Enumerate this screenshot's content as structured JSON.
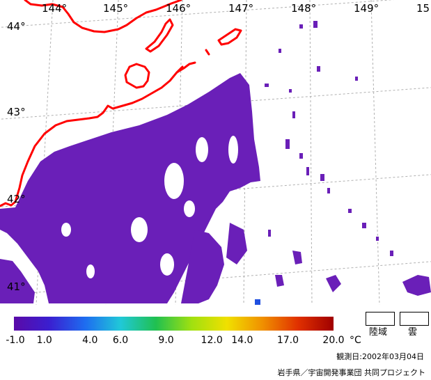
{
  "map": {
    "lon_labels": [
      "144°",
      "145°",
      "146°",
      "147°",
      "148°",
      "149°",
      "15"
    ],
    "lat_labels": [
      "44°",
      "43°",
      "42°",
      "41°"
    ],
    "coastline_color": "#ff0000",
    "sst_color": "#6a1fb8",
    "grid_color": "#b0b0b0"
  },
  "legend": {
    "ticks": [
      "-1.0",
      "1.0",
      "4.0",
      "6.0",
      "9.0",
      "12.0",
      "14.0",
      "17.0",
      "20.0"
    ],
    "unit": "°C",
    "land_label": "陸域",
    "cloud_label": "雲",
    "colors": [
      "#5a0aa8",
      "#3a1fd0",
      "#1e6cf0",
      "#20c8d8",
      "#20c050",
      "#a0e010",
      "#f0e000",
      "#f09000",
      "#e03000",
      "#a00000"
    ]
  },
  "observation_date": "観測日:2002年03月04日",
  "credit": "岩手県／宇宙開発事業団 共同プロジェクト"
}
